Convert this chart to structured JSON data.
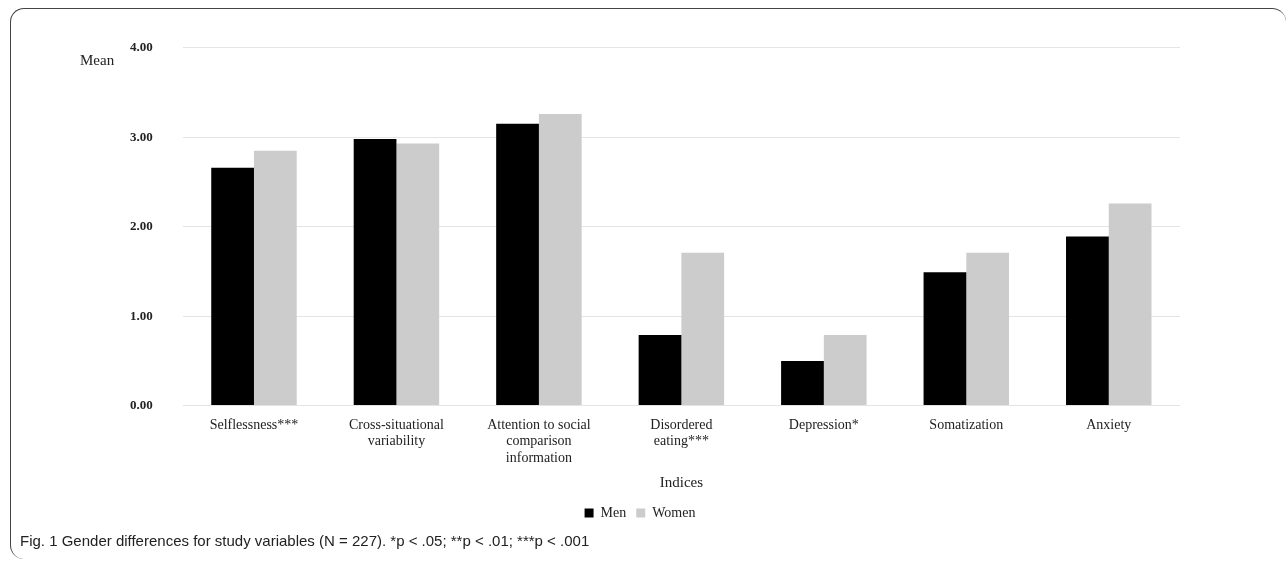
{
  "chart_data": {
    "type": "bar",
    "xlabel": "Indices",
    "ylabel": "Mean",
    "categories": [
      "Selflessness***",
      "Cross-situational variability",
      "Attention to social comparison information",
      "Disordered eating***",
      "Depression*",
      "Somatization",
      "Anxiety"
    ],
    "series": [
      {
        "name": "Men",
        "color": "#000000",
        "values": [
          2.66,
          2.98,
          3.15,
          0.79,
          0.5,
          1.49,
          1.89
        ]
      },
      {
        "name": "Women",
        "color": "#cccccc",
        "values": [
          2.85,
          2.93,
          3.26,
          1.71,
          0.79,
          1.71,
          2.26
        ]
      }
    ],
    "ylim": [
      0,
      4
    ],
    "yticks": [
      {
        "value": 0,
        "label": "0.00"
      },
      {
        "value": 1,
        "label": "1.00"
      },
      {
        "value": 2,
        "label": "2.00"
      },
      {
        "value": 3,
        "label": "3.00"
      },
      {
        "value": 4,
        "label": "4.00"
      }
    ],
    "grid": "y",
    "legend": "bottom",
    "annotations": [
      "Fig. 1  Gender differences for study variables (N = 227). *p < .05; **p < .01; ***p < .001"
    ]
  }
}
